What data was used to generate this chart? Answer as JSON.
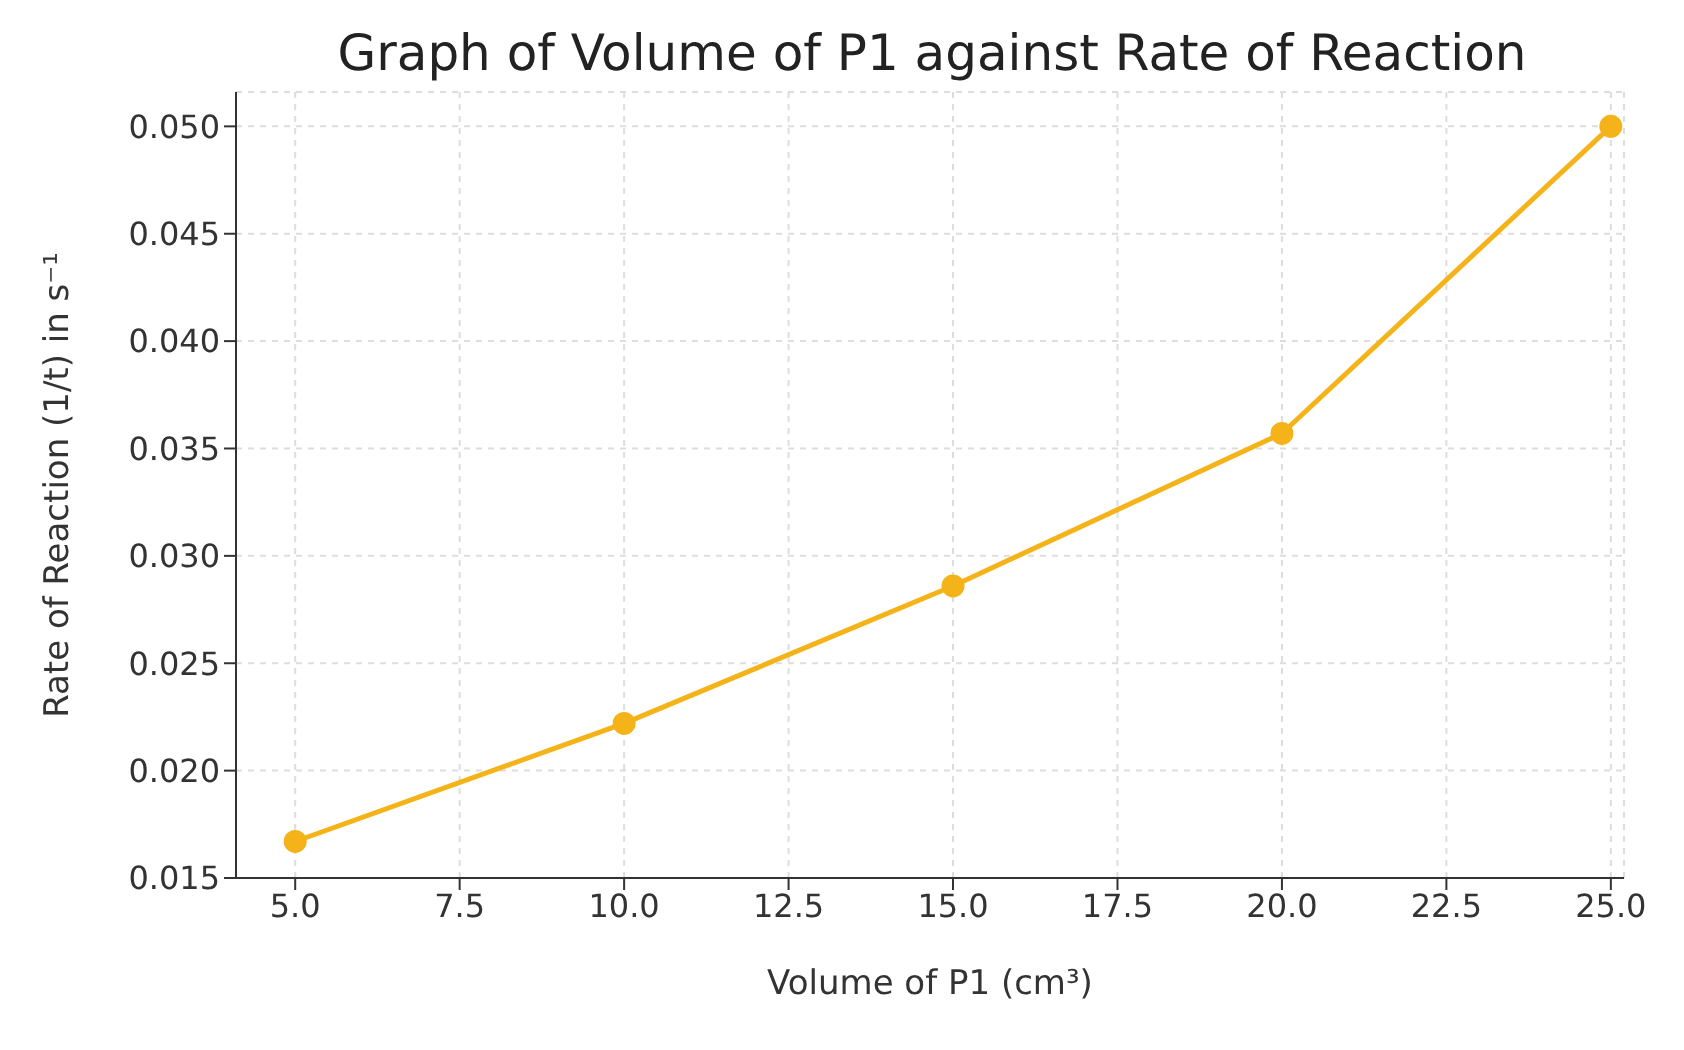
{
  "chart_data": {
    "type": "line",
    "title": "Graph of Volume of P1 against Rate of Reaction",
    "xlabel": "Volume of P1 (cm³)",
    "ylabel": "Rate of Reaction (1/t) in s⁻¹",
    "x": [
      5,
      10,
      15,
      20,
      25
    ],
    "series": [
      {
        "color": "#f5b31a",
        "values": [
          0.0167,
          0.0222,
          0.0286,
          0.0357,
          0.05
        ]
      }
    ],
    "xlim": [
      4.1,
      25.2
    ],
    "xticks": [
      {
        "value": 5,
        "label": "5.0"
      },
      {
        "value": 7.5,
        "label": "7.5"
      },
      {
        "value": 10,
        "label": "10.0"
      },
      {
        "value": 12.5,
        "label": "12.5"
      },
      {
        "value": 15,
        "label": "15.0"
      },
      {
        "value": 17.5,
        "label": "17.5"
      },
      {
        "value": 20,
        "label": "20.0"
      },
      {
        "value": 22.5,
        "label": "22.5"
      },
      {
        "value": 25,
        "label": "25.0"
      }
    ],
    "ylim": [
      0.015,
      0.0516
    ],
    "yticks": [
      0.015,
      {
        "value": 0.02,
        "label": "0.020"
      },
      0.025,
      {
        "value": 0.03,
        "label": "0.030"
      },
      0.035,
      {
        "value": 0.04,
        "label": "0.040"
      },
      0.045,
      {
        "value": 0.05,
        "label": "0.050"
      }
    ],
    "grid": true,
    "marker": "circle",
    "line_style": "solid"
  }
}
